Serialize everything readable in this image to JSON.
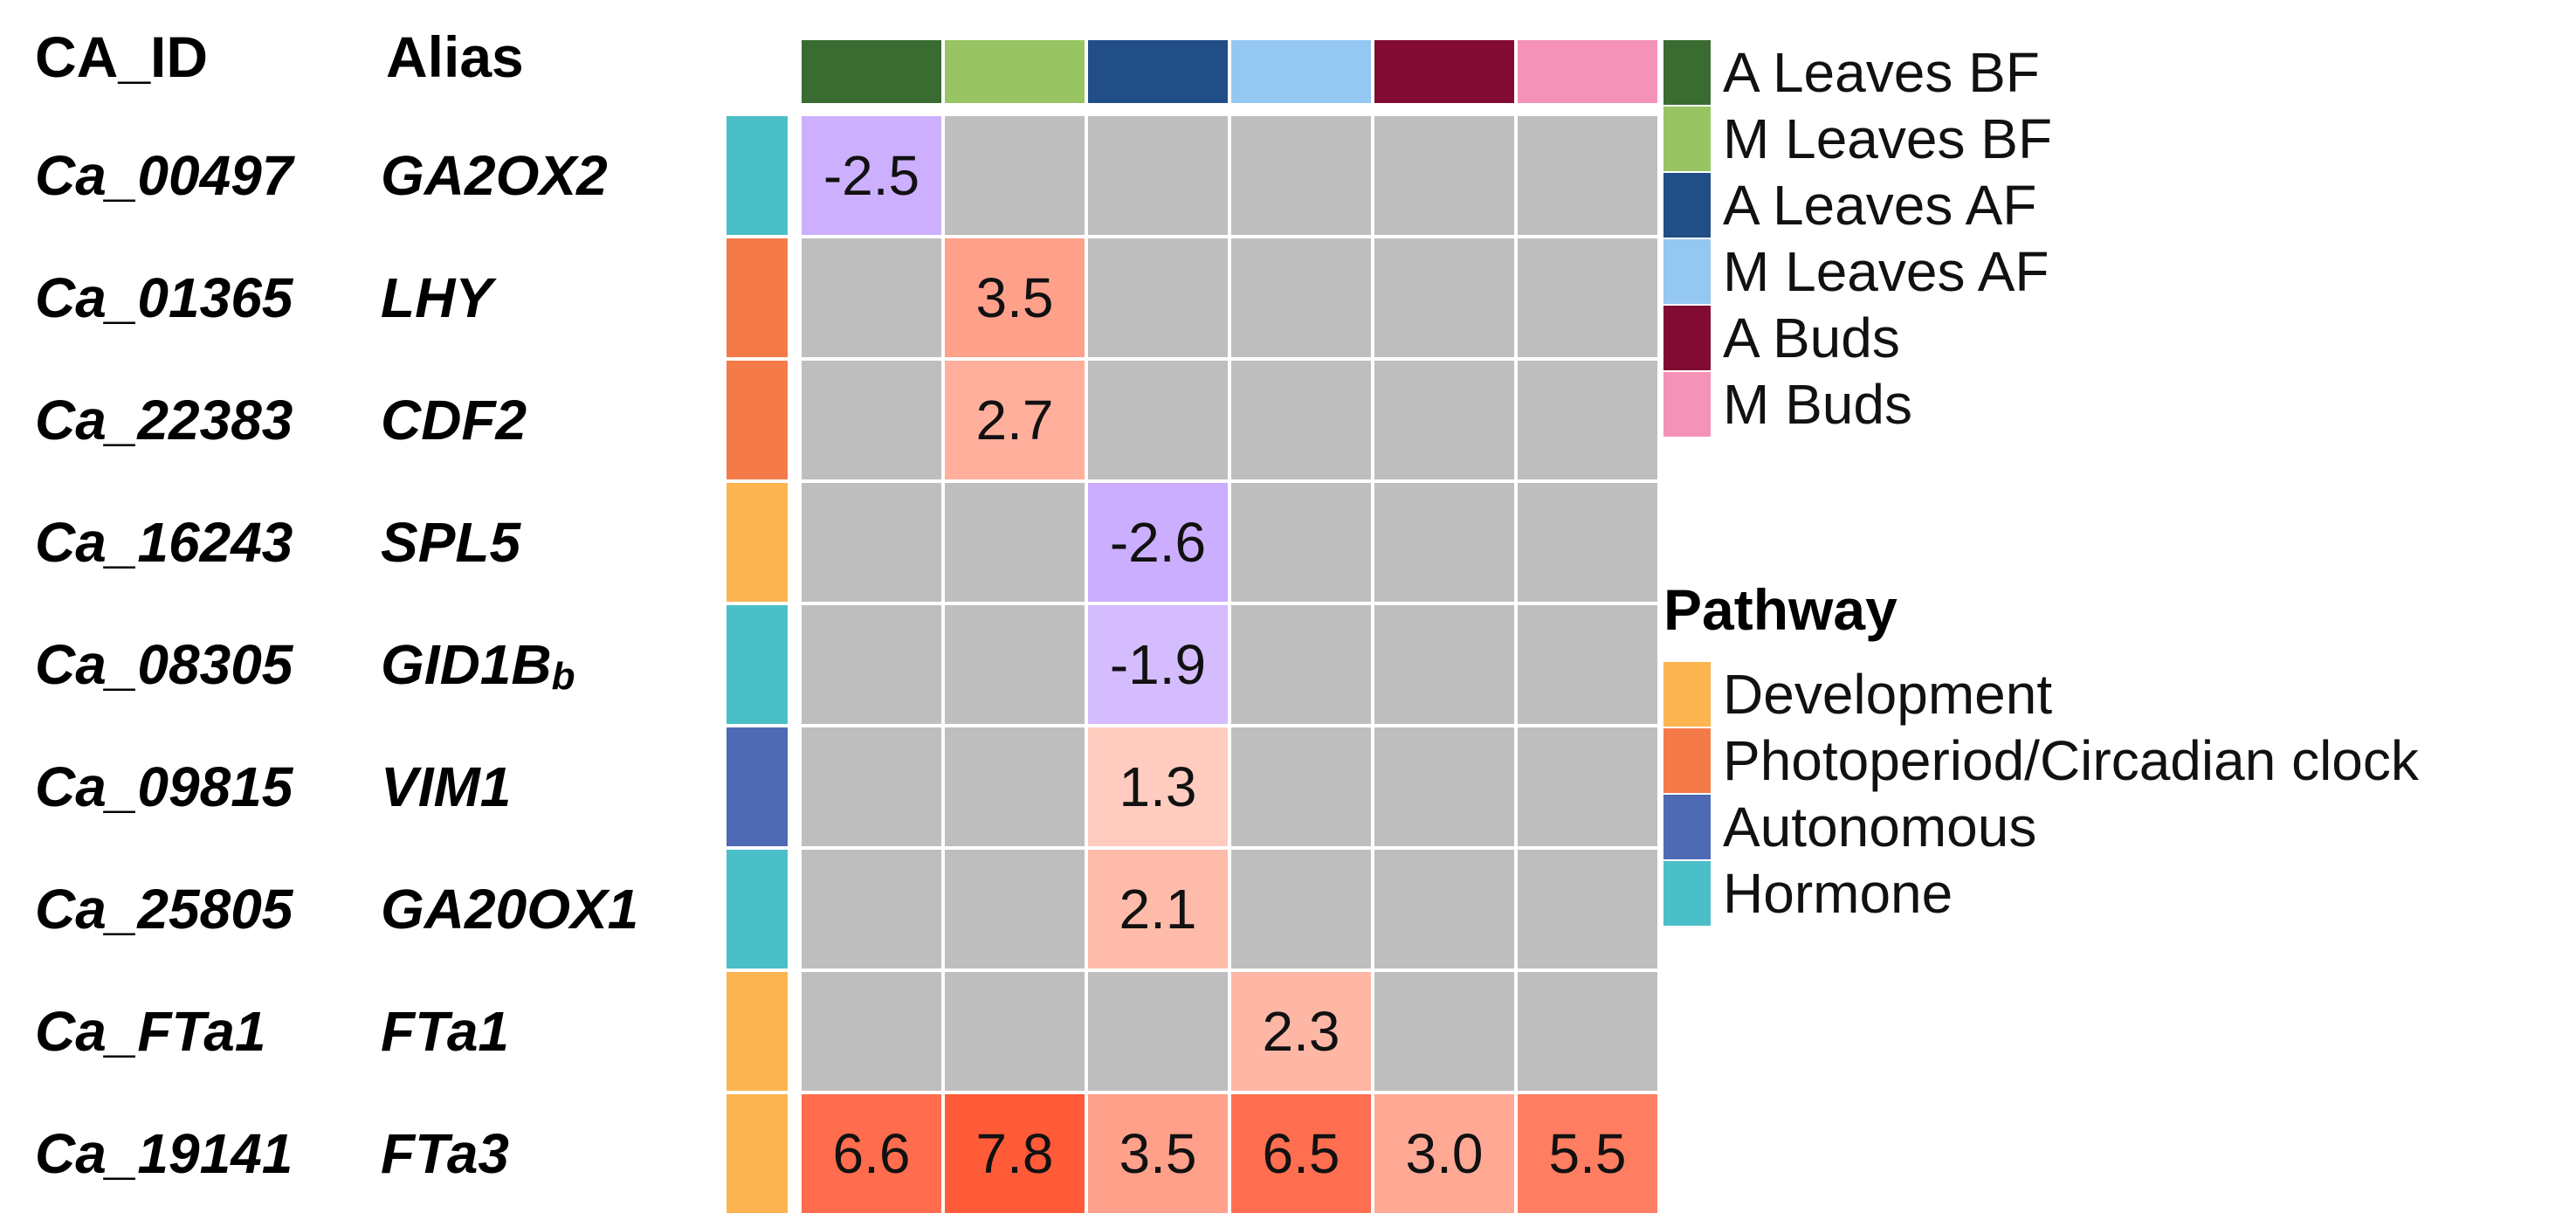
{
  "header": {
    "ca_id": "CA_ID",
    "alias": "Alias"
  },
  "rows": [
    {
      "ca_id": "Ca_00497",
      "alias": "GA2OX2",
      "alias_sub": "",
      "pathway": "Hormone"
    },
    {
      "ca_id": "Ca_01365",
      "alias": "LHY",
      "alias_sub": "",
      "pathway": "Photoperiod/Circadian clock"
    },
    {
      "ca_id": "Ca_22383",
      "alias": "CDF2",
      "alias_sub": "",
      "pathway": "Photoperiod/Circadian clock"
    },
    {
      "ca_id": "Ca_16243",
      "alias": "SPL5",
      "alias_sub": "",
      "pathway": "Development"
    },
    {
      "ca_id": "Ca_08305",
      "alias": "GID1B",
      "alias_sub": "b",
      "pathway": "Hormone"
    },
    {
      "ca_id": "Ca_09815",
      "alias": "VIM1",
      "alias_sub": "",
      "pathway": "Autonomous"
    },
    {
      "ca_id": "Ca_25805",
      "alias": "GA20OX1",
      "alias_sub": "",
      "pathway": "Hormone"
    },
    {
      "ca_id": "Ca_FTa1",
      "alias": "FTa1",
      "alias_sub": "",
      "pathway": "Development"
    },
    {
      "ca_id": "Ca_19141",
      "alias": "FTa3",
      "alias_sub": "",
      "pathway": "Development"
    }
  ],
  "chart_data": {
    "type": "heatmap",
    "columns": [
      "A Leaves BF",
      "M Leaves BF",
      "A Leaves AF",
      "M Leaves AF",
      "A Buds",
      "M Buds"
    ],
    "rows": [
      "Ca_00497",
      "Ca_01365",
      "Ca_22383",
      "Ca_16243",
      "Ca_08305",
      "Ca_09815",
      "Ca_25805",
      "Ca_FTa1",
      "Ca_19141"
    ],
    "values": [
      [
        -2.5,
        null,
        null,
        null,
        null,
        null
      ],
      [
        null,
        3.5,
        null,
        null,
        null,
        null
      ],
      [
        null,
        2.7,
        null,
        null,
        null,
        null
      ],
      [
        null,
        null,
        -2.6,
        null,
        null,
        null
      ],
      [
        null,
        null,
        -1.9,
        null,
        null,
        null
      ],
      [
        null,
        null,
        1.3,
        null,
        null,
        null
      ],
      [
        null,
        null,
        2.1,
        null,
        null,
        null
      ],
      [
        null,
        null,
        null,
        2.3,
        null,
        null
      ],
      [
        6.6,
        7.8,
        3.5,
        6.5,
        3.0,
        5.5
      ]
    ],
    "labels": [
      [
        "-2.5",
        "",
        "",
        "",
        "",
        ""
      ],
      [
        "",
        "3.5",
        "",
        "",
        "",
        ""
      ],
      [
        "",
        "2.7",
        "",
        "",
        "",
        ""
      ],
      [
        "",
        "",
        "-2.6",
        "",
        "",
        ""
      ],
      [
        "",
        "",
        "-1.9",
        "",
        "",
        ""
      ],
      [
        "",
        "",
        "1.3",
        "",
        "",
        ""
      ],
      [
        "",
        "",
        "2.1",
        "",
        "",
        ""
      ],
      [
        "",
        "",
        "",
        "2.3",
        "",
        ""
      ],
      [
        "6.6",
        "7.8",
        "3.5",
        "6.5",
        "3.0",
        "5.5"
      ]
    ],
    "na_color": "#bebebe",
    "column_colors": [
      "#3a6b31",
      "#98c463",
      "#214e86",
      "#94c7f2",
      "#820b34",
      "#f592b7"
    ],
    "pathway_colors": {
      "Development": "#fcb450",
      "Photoperiod/Circadian clock": "#f57a4a",
      "Autonomous": "#4e6ab4",
      "Hormone": "#4bbfc8"
    }
  },
  "legend": {
    "samples": [
      "A Leaves BF",
      "M Leaves BF",
      "A Leaves AF",
      "M Leaves AF",
      "A Buds",
      "M Buds"
    ],
    "pathway_title": "Pathway",
    "pathways": [
      "Development",
      "Photoperiod/Circadian clock",
      "Autonomous",
      "Hormone"
    ]
  }
}
